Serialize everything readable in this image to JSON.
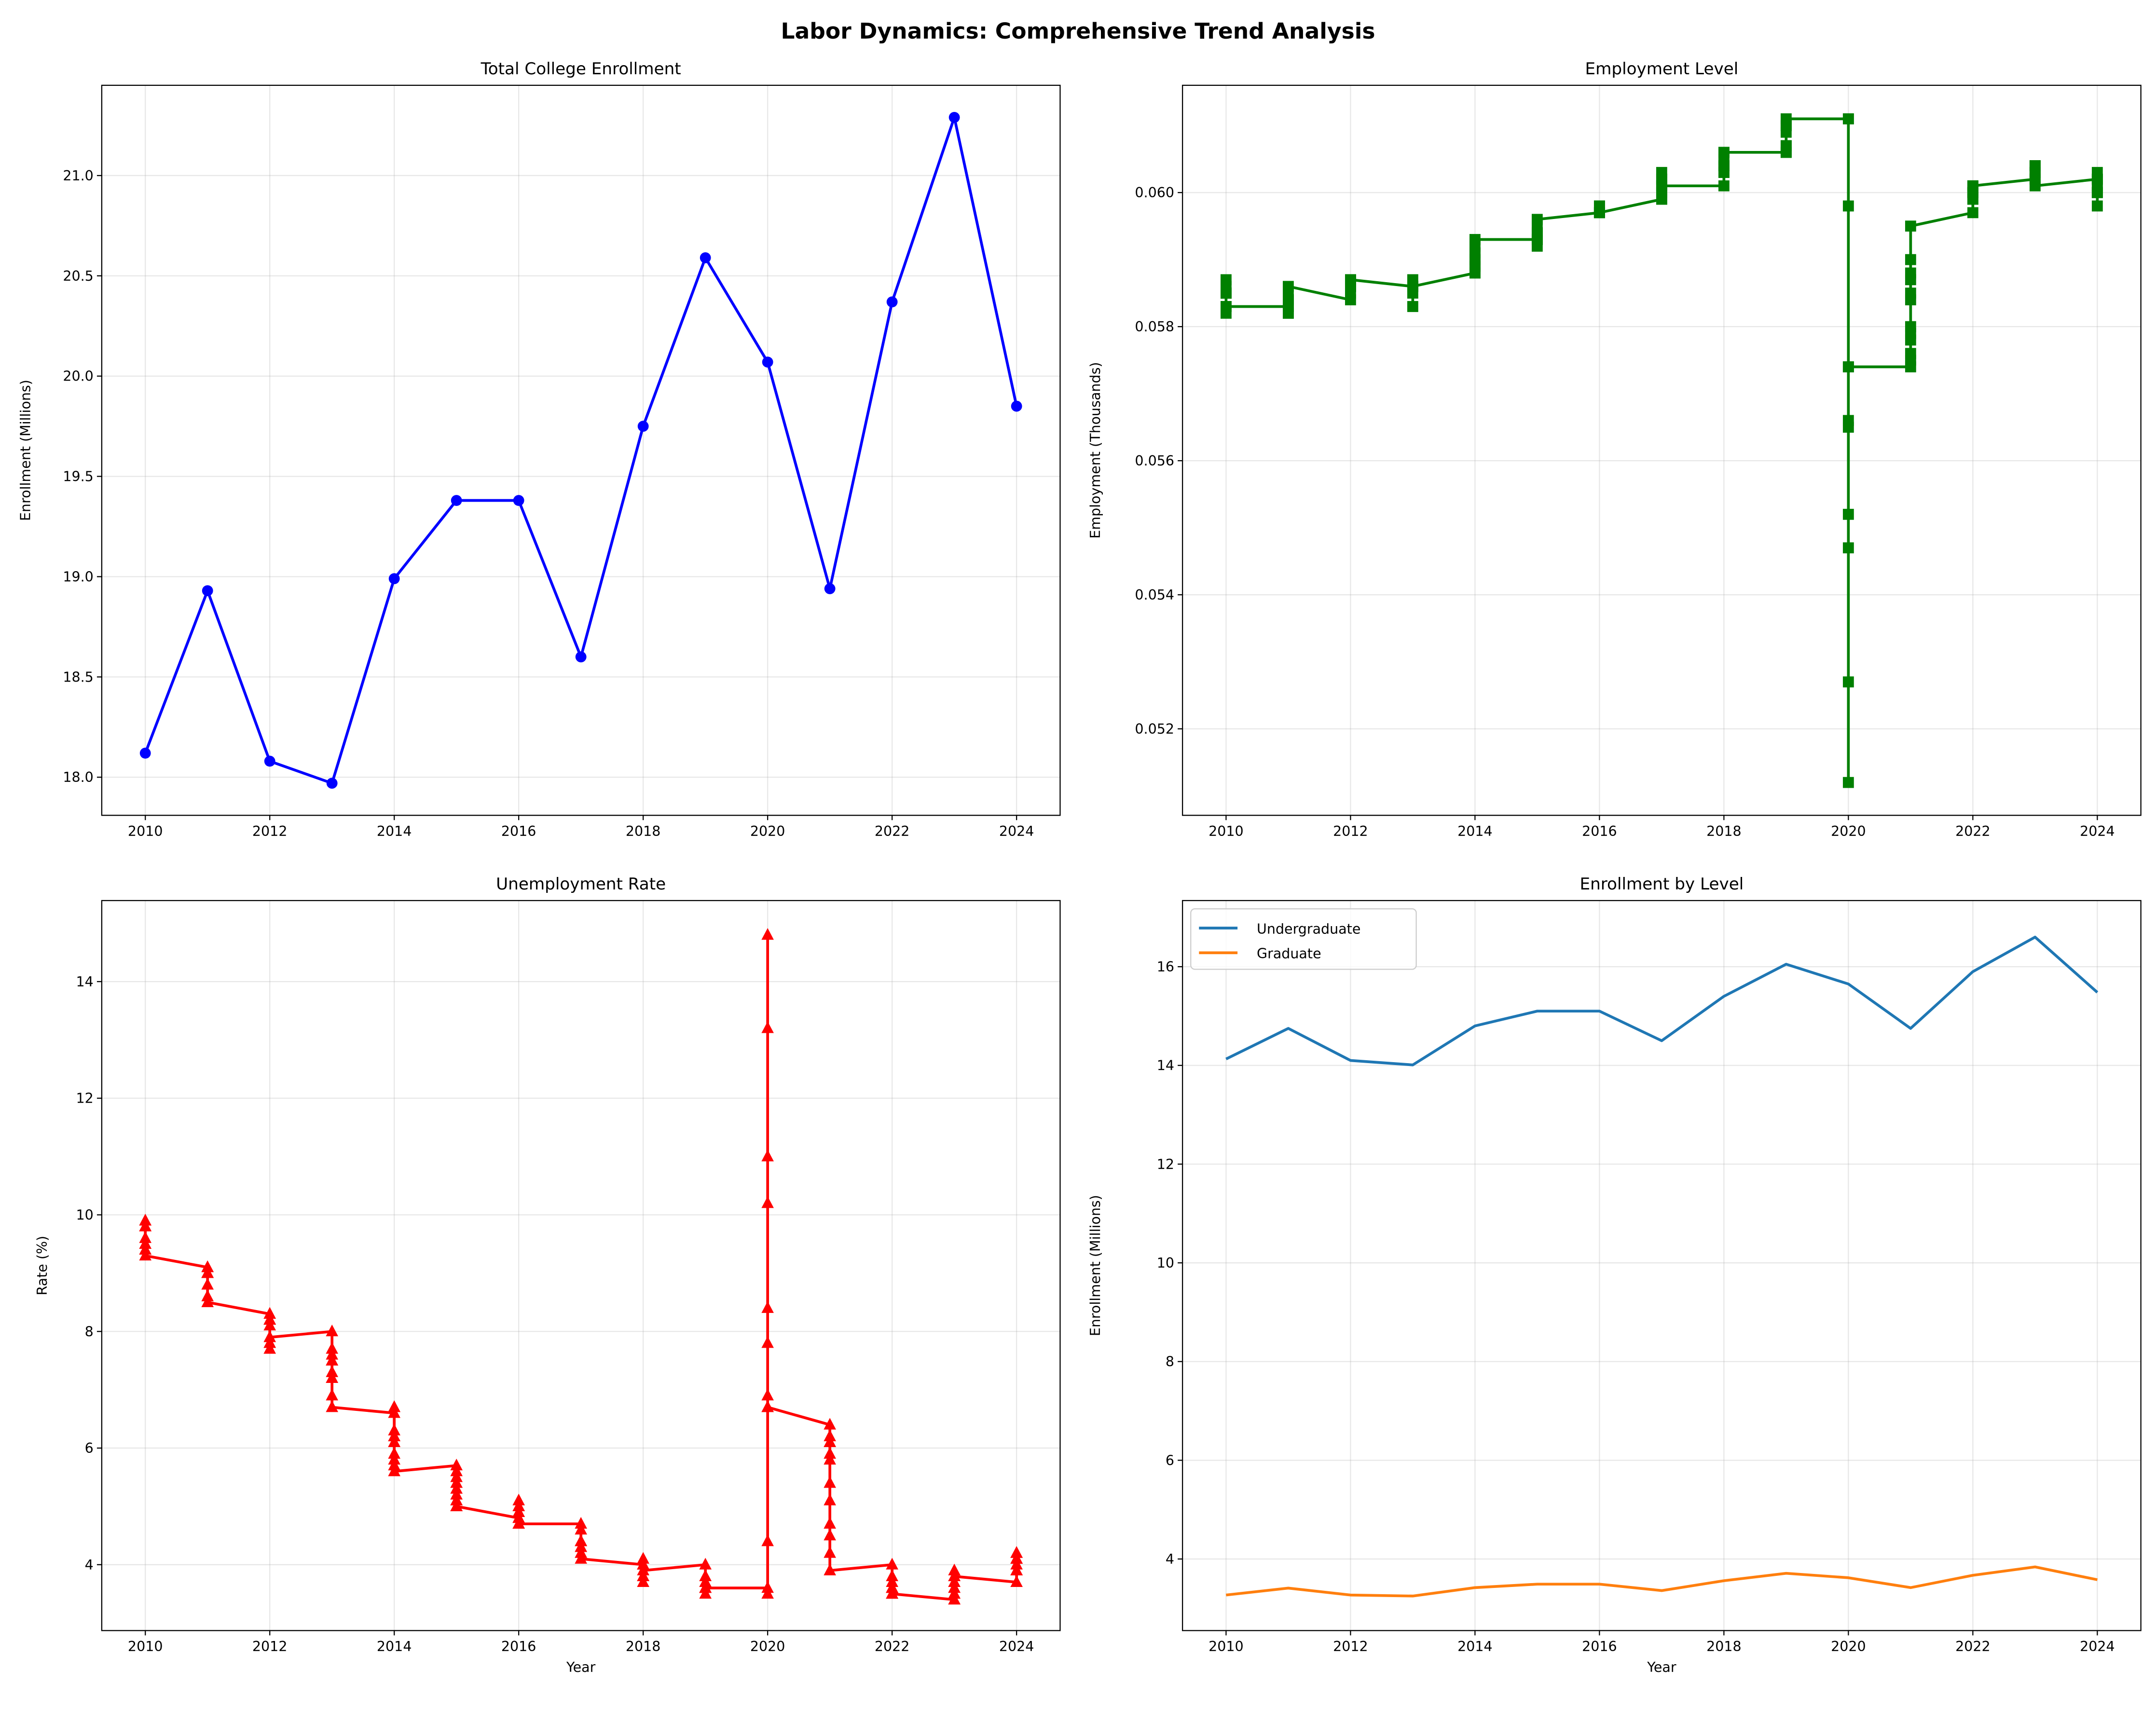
{
  "suptitle": "Labor Dynamics: Comprehensive Trend Analysis",
  "chart_data": [
    {
      "type": "line",
      "title": "Total College Enrollment",
      "xlabel": "",
      "ylabel": "Enrollment (Millions)",
      "x": [
        2010,
        2011,
        2012,
        2013,
        2014,
        2015,
        2016,
        2017,
        2018,
        2019,
        2020,
        2021,
        2022,
        2023,
        2024
      ],
      "series": [
        {
          "values": [
            18.12,
            18.93,
            18.08,
            17.97,
            18.99,
            19.38,
            19.38,
            18.6,
            19.75,
            20.59,
            20.07,
            18.94,
            20.37,
            21.29,
            19.85
          ],
          "color": "#0000ff",
          "marker": "circle"
        }
      ],
      "xlim": [
        2009.3,
        2024.7
      ],
      "ylim": [
        17.81,
        21.45
      ],
      "xticks": [
        2010,
        2012,
        2014,
        2016,
        2018,
        2020,
        2022,
        2024
      ],
      "yticks": [
        "18.0",
        "18.5",
        "19.0",
        "19.5",
        "20.0",
        "20.5",
        "21.0"
      ],
      "grid": true
    },
    {
      "type": "line",
      "title": "Employment Level",
      "xlabel": "",
      "ylabel": "Employment (Thousands)",
      "x_note": "12 monthly points plotted at each year",
      "x": [
        2010,
        2011,
        2012,
        2013,
        2014,
        2015,
        2016,
        2017,
        2018,
        2019,
        2020,
        2021,
        2022,
        2023,
        2024
      ],
      "series": [
        {
          "color": "#008000",
          "marker": "square",
          "monthly": [
            [
              0.0585,
              0.0585,
              0.0585,
              0.0587,
              0.0586,
              0.0585,
              0.0585,
              0.0585,
              0.0585,
              0.0583,
              0.0582,
              0.0583
            ],
            [
              0.0583,
              0.0584,
              0.0584,
              0.0584,
              0.0584,
              0.0582,
              0.0582,
              0.0583,
              0.0583,
              0.0584,
              0.0585,
              0.0586
            ],
            [
              0.0584,
              0.0586,
              0.0586,
              0.0586,
              0.0586,
              0.0587,
              0.0586,
              0.0585,
              0.0587,
              0.0587,
              0.0587,
              0.0587
            ],
            [
              0.0586,
              0.0586,
              0.0585,
              0.0586,
              0.0586,
              0.0586,
              0.0587,
              0.0586,
              0.0586,
              0.0586,
              0.0583,
              0.0586
            ],
            [
              0.0588,
              0.0588,
              0.0589,
              0.0589,
              0.0589,
              0.059,
              0.059,
              0.059,
              0.0591,
              0.0591,
              0.0592,
              0.0593
            ],
            [
              0.0593,
              0.0593,
              0.0593,
              0.0594,
              0.0594,
              0.0593,
              0.0593,
              0.0594,
              0.0592,
              0.0594,
              0.0595,
              0.0596
            ],
            [
              0.0597,
              0.0598,
              0.0598,
              0.0597,
              0.0597,
              0.0597,
              0.0597,
              0.0597,
              0.0598,
              0.0597,
              0.0597,
              0.0597
            ],
            [
              0.0599,
              0.0599,
              0.06,
              0.0602,
              0.06,
              0.0601,
              0.0602,
              0.0601,
              0.0602,
              0.0601,
              0.0603,
              0.0601
            ],
            [
              0.0601,
              0.0604,
              0.0604,
              0.0603,
              0.0604,
              0.0604,
              0.0604,
              0.0603,
              0.0604,
              0.0605,
              0.0606,
              0.0606
            ],
            [
              0.0606,
              0.0607,
              0.0607,
              0.0606,
              0.0606,
              0.0607,
              0.0609,
              0.061,
              0.061,
              0.061,
              0.061,
              0.0611
            ],
            [
              0.0611,
              0.0611,
              0.0598,
              0.0512,
              0.0527,
              0.0547,
              0.0552,
              0.0565,
              0.0566,
              0.0574,
              0.0574,
              0.0574
            ],
            [
              0.0574,
              0.0575,
              0.0576,
              0.0578,
              0.0579,
              0.058,
              0.0584,
              0.0585,
              0.0587,
              0.0588,
              0.059,
              0.0595
            ],
            [
              0.0597,
              0.0599,
              0.06,
              0.06,
              0.06,
              0.0599,
              0.06,
              0.0601,
              0.0601,
              0.06,
              0.06,
              0.0601
            ],
            [
              0.0602,
              0.0602,
              0.0603,
              0.0603,
              0.0603,
              0.0603,
              0.0604,
              0.0604,
              0.0604,
              0.0602,
              0.0604,
              0.0601
            ],
            [
              0.0602,
              0.0601,
              0.0603,
              0.0602,
              0.0601,
              0.0602,
              0.06,
              0.06,
              0.0602,
              0.06,
              0.0598,
              0.06
            ]
          ]
        }
      ],
      "xlim": [
        2009.3,
        2024.7
      ],
      "ylim": [
        0.05071,
        0.0616
      ],
      "xticks": [
        2010,
        2012,
        2014,
        2016,
        2018,
        2020,
        2022,
        2024
      ],
      "yticks": [
        "0.052",
        "0.054",
        "0.056",
        "0.058",
        "0.060"
      ],
      "grid": true
    },
    {
      "type": "line",
      "title": "Unemployment Rate",
      "xlabel": "Year",
      "ylabel": "Rate (%)",
      "x": [
        2010,
        2011,
        2012,
        2013,
        2014,
        2015,
        2016,
        2017,
        2018,
        2019,
        2020,
        2021,
        2022,
        2023,
        2024
      ],
      "series": [
        {
          "color": "#ff0000",
          "marker": "triangle-up",
          "monthly": [
            [
              9.8,
              9.8,
              9.9,
              9.9,
              9.6,
              9.4,
              9.4,
              9.5,
              9.5,
              9.4,
              9.8,
              9.3
            ],
            [
              9.1,
              9.0,
              9.0,
              9.1,
              9.0,
              9.1,
              9.0,
              9.0,
              9.0,
              8.8,
              8.6,
              8.5
            ],
            [
              8.3,
              8.3,
              8.2,
              8.2,
              8.2,
              8.2,
              8.2,
              8.1,
              7.8,
              7.8,
              7.7,
              7.9
            ],
            [
              8.0,
              7.7,
              7.5,
              7.6,
              7.5,
              7.5,
              7.3,
              7.2,
              7.2,
              7.2,
              6.9,
              6.7
            ],
            [
              6.6,
              6.7,
              6.7,
              6.2,
              6.3,
              6.1,
              6.2,
              6.1,
              5.9,
              5.7,
              5.8,
              5.6
            ],
            [
              5.7,
              5.5,
              5.4,
              5.4,
              5.6,
              5.3,
              5.2,
              5.1,
              5.0,
              5.0,
              5.1,
              5.0
            ],
            [
              4.8,
              4.9,
              5.0,
              5.1,
              4.8,
              4.9,
              4.8,
              4.9,
              5.0,
              4.9,
              4.7,
              4.7
            ],
            [
              4.7,
              4.6,
              4.4,
              4.4,
              4.4,
              4.3,
              4.3,
              4.4,
              4.3,
              4.2,
              4.2,
              4.1
            ],
            [
              4.0,
              4.1,
              4.0,
              4.0,
              3.8,
              4.0,
              3.8,
              3.8,
              3.7,
              3.8,
              3.8,
              3.9
            ],
            [
              4.0,
              3.8,
              3.8,
              3.7,
              3.6,
              3.6,
              3.7,
              3.6,
              3.5,
              3.6,
              3.6,
              3.6
            ],
            [
              3.6,
              3.5,
              4.4,
              14.8,
              13.2,
              11.0,
              10.2,
              8.4,
              7.8,
              6.9,
              6.7,
              6.7
            ],
            [
              6.4,
              6.2,
              6.1,
              6.1,
              5.8,
              5.9,
              5.4,
              5.1,
              4.7,
              4.5,
              4.2,
              3.9
            ],
            [
              4.0,
              3.8,
              3.6,
              3.7,
              3.6,
              3.6,
              3.5,
              3.6,
              3.5,
              3.6,
              3.6,
              3.5
            ],
            [
              3.4,
              3.6,
              3.5,
              3.4,
              3.7,
              3.6,
              3.5,
              3.8,
              3.8,
              3.9,
              3.7,
              3.8
            ],
            [
              3.7,
              3.9,
              3.9,
              3.9,
              4.0,
              4.1,
              4.2,
              4.2,
              4.1,
              4.1,
              4.2,
              4.1
            ]
          ]
        }
      ],
      "xlim": [
        2009.3,
        2024.7
      ],
      "ylim": [
        2.87,
        15.39
      ],
      "xticks": [
        2010,
        2012,
        2014,
        2016,
        2018,
        2020,
        2022,
        2024
      ],
      "yticks": [
        "4",
        "6",
        "8",
        "10",
        "12",
        "14"
      ],
      "grid": true
    },
    {
      "type": "line",
      "title": "Enrollment by Level",
      "xlabel": "Year",
      "ylabel": "Enrollment (Millions)",
      "x": [
        2010,
        2011,
        2012,
        2013,
        2014,
        2015,
        2016,
        2017,
        2018,
        2019,
        2020,
        2021,
        2022,
        2023,
        2024
      ],
      "series": [
        {
          "name": "Undergraduate",
          "color": "#1f77b4",
          "values": [
            14.13,
            14.75,
            14.1,
            14.01,
            14.8,
            15.1,
            15.1,
            14.5,
            15.4,
            16.05,
            15.65,
            14.75,
            15.9,
            16.6,
            15.48
          ]
        },
        {
          "name": "Graduate",
          "color": "#ff7f0e",
          "values": [
            3.27,
            3.41,
            3.27,
            3.25,
            3.42,
            3.49,
            3.49,
            3.36,
            3.56,
            3.71,
            3.62,
            3.42,
            3.67,
            3.84,
            3.58
          ]
        }
      ],
      "xlim": [
        2009.3,
        2024.7
      ],
      "ylim": [
        2.55,
        17.34
      ],
      "xticks": [
        2010,
        2012,
        2014,
        2016,
        2018,
        2020,
        2022,
        2024
      ],
      "yticks": [
        "4",
        "6",
        "8",
        "10",
        "12",
        "14",
        "16"
      ],
      "legend": "top-left",
      "grid": true
    }
  ]
}
